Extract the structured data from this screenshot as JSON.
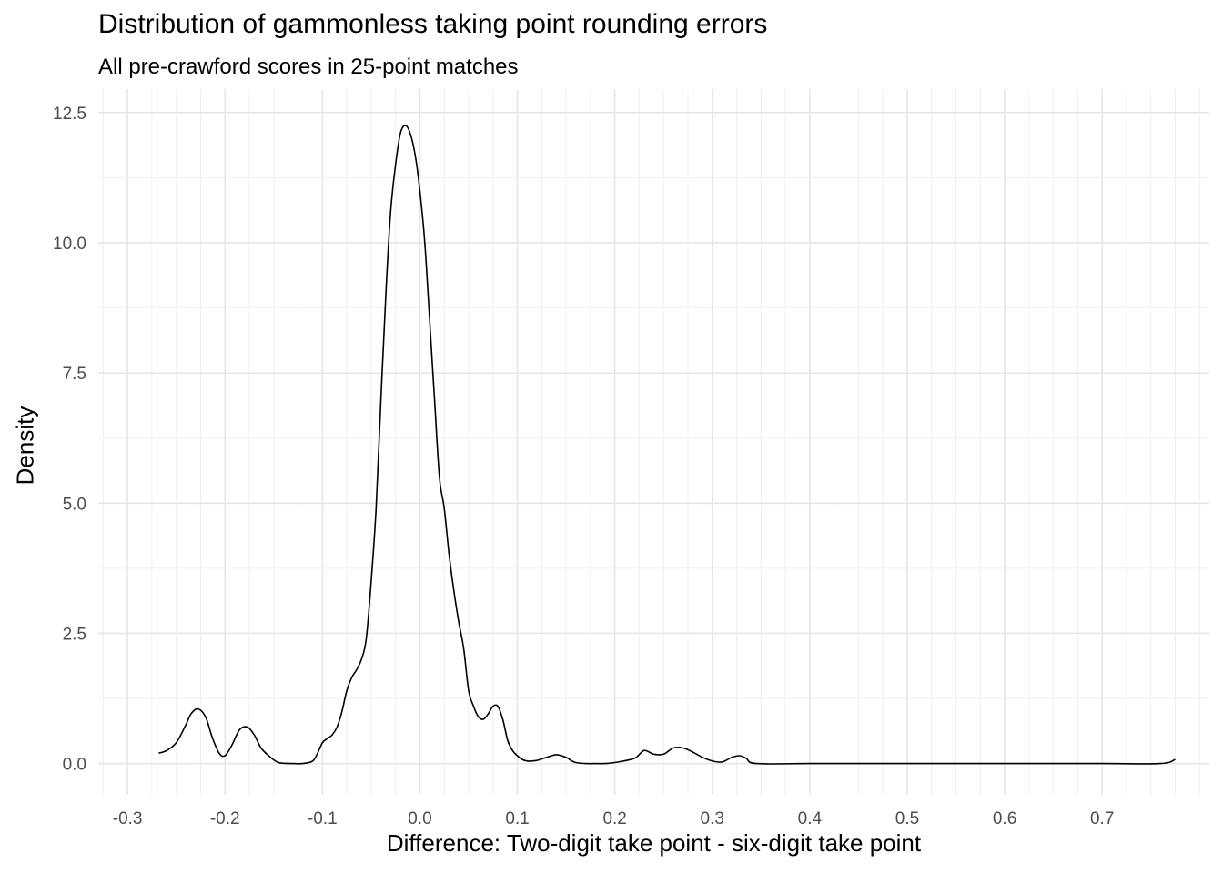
{
  "chart_data": {
    "type": "area",
    "title": "Distribution of gammonless taking point rounding errors",
    "subtitle": "All pre-crawford scores in 25-point matches",
    "xlabel": "Difference: Two-digit take point - six-digit take point",
    "ylabel": "Density",
    "xlim": [
      -0.33,
      0.81
    ],
    "ylim": [
      -0.6,
      12.95
    ],
    "x_ticks": [
      -0.3,
      -0.2,
      -0.1,
      0.0,
      0.1,
      0.2,
      0.3,
      0.4,
      0.5,
      0.6,
      0.7
    ],
    "x_tick_labels": [
      "-0.3",
      "-0.2",
      "-0.1",
      "0.0",
      "0.1",
      "0.2",
      "0.3",
      "0.4",
      "0.5",
      "0.6",
      "0.7"
    ],
    "y_ticks": [
      0,
      2.5,
      5,
      7.5,
      10,
      12.5
    ],
    "y_tick_labels": [
      "0.0",
      "2.5",
      "5.0",
      "7.5",
      "10.0",
      "12.5"
    ],
    "grid": true,
    "series": [
      {
        "x": [
          -0.268,
          -0.26,
          -0.25,
          -0.24,
          -0.235,
          -0.228,
          -0.22,
          -0.213,
          -0.206,
          -0.2,
          -0.193,
          -0.185,
          -0.177,
          -0.17,
          -0.163,
          -0.155,
          -0.145,
          -0.13,
          -0.12,
          -0.11,
          -0.105,
          -0.1,
          -0.095,
          -0.09,
          -0.085,
          -0.08,
          -0.075,
          -0.07,
          -0.065,
          -0.06,
          -0.055,
          -0.05,
          -0.045,
          -0.04,
          -0.035,
          -0.03,
          -0.025,
          -0.02,
          -0.015,
          -0.01,
          -0.005,
          0.0,
          0.005,
          0.01,
          0.015,
          0.02,
          0.025,
          0.03,
          0.035,
          0.04,
          0.045,
          0.05,
          0.055,
          0.06,
          0.065,
          0.07,
          0.075,
          0.08,
          0.085,
          0.09,
          0.095,
          0.1,
          0.105,
          0.11,
          0.12,
          0.13,
          0.14,
          0.15,
          0.155,
          0.16,
          0.17,
          0.18,
          0.19,
          0.2,
          0.22,
          0.23,
          0.24,
          0.25,
          0.26,
          0.27,
          0.28,
          0.29,
          0.3,
          0.31,
          0.32,
          0.328,
          0.335,
          0.345,
          0.4,
          0.5,
          0.6,
          0.7,
          0.76,
          0.775
        ],
        "y": [
          0.2,
          0.25,
          0.4,
          0.75,
          0.95,
          1.05,
          0.9,
          0.5,
          0.2,
          0.15,
          0.35,
          0.65,
          0.7,
          0.55,
          0.3,
          0.15,
          0.02,
          0.0,
          0.0,
          0.05,
          0.2,
          0.4,
          0.48,
          0.55,
          0.7,
          1.0,
          1.4,
          1.65,
          1.8,
          2.0,
          2.4,
          3.5,
          4.9,
          7.0,
          9.0,
          10.6,
          11.5,
          12.1,
          12.25,
          12.1,
          11.7,
          11.0,
          10.0,
          8.5,
          7.0,
          5.5,
          4.9,
          4.0,
          3.3,
          2.7,
          2.2,
          1.4,
          1.1,
          0.9,
          0.85,
          0.95,
          1.1,
          1.1,
          0.85,
          0.45,
          0.25,
          0.15,
          0.08,
          0.05,
          0.06,
          0.12,
          0.17,
          0.12,
          0.06,
          0.02,
          0.0,
          0.0,
          0.0,
          0.02,
          0.1,
          0.25,
          0.18,
          0.18,
          0.3,
          0.3,
          0.22,
          0.12,
          0.05,
          0.03,
          0.12,
          0.15,
          0.1,
          0.0,
          0.0,
          0.0,
          0.0,
          0.0,
          0.0,
          0.08
        ]
      }
    ]
  }
}
